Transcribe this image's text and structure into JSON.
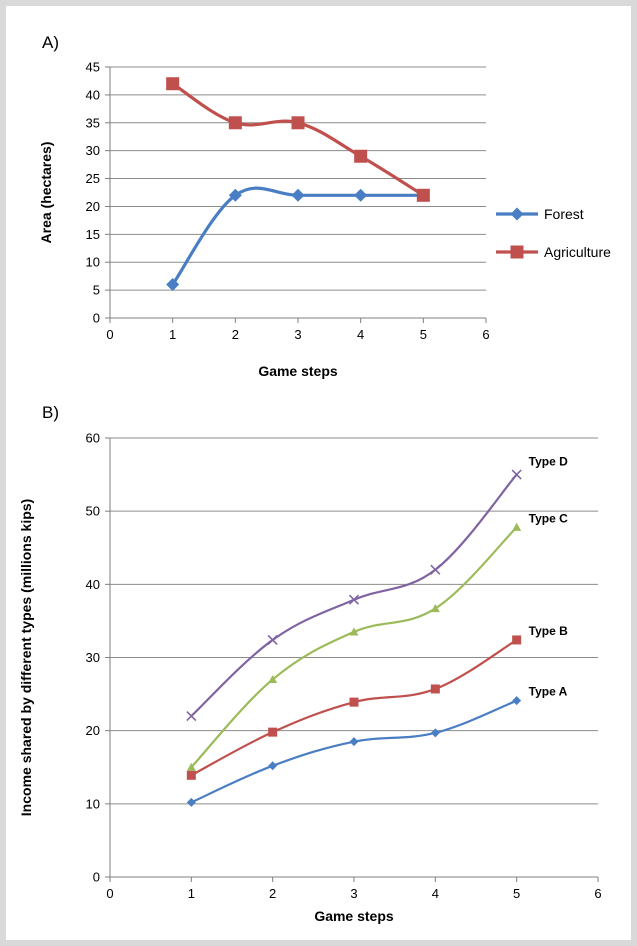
{
  "chart_data": [
    {
      "panel_label": "A)",
      "type": "line",
      "xlabel": "Game steps",
      "ylabel": "Area (hectares)",
      "xlim": [
        0,
        6
      ],
      "ylim": [
        0,
        45
      ],
      "xticks": [
        0,
        1,
        2,
        3,
        4,
        5,
        6
      ],
      "yticks": [
        0,
        5,
        10,
        15,
        20,
        25,
        30,
        35,
        40,
        45
      ],
      "grid": "horizontal",
      "legend": "right",
      "series": [
        {
          "name": "Forest",
          "marker": "diamond",
          "color": "#4a7ec4",
          "x": [
            1,
            2,
            3,
            4,
            5
          ],
          "y": [
            6,
            22,
            22,
            22,
            22
          ]
        },
        {
          "name": "Agriculture",
          "marker": "square",
          "color": "#c0504d",
          "x": [
            1,
            2,
            3,
            4,
            5
          ],
          "y": [
            42,
            35,
            35,
            29,
            22
          ]
        }
      ]
    },
    {
      "panel_label": "B)",
      "type": "line",
      "xlabel": "Game steps",
      "ylabel": "Income shared by different types (millions kips)",
      "xlim": [
        0,
        6
      ],
      "ylim": [
        0,
        60
      ],
      "xticks": [
        0,
        1,
        2,
        3,
        4,
        5,
        6
      ],
      "yticks": [
        0,
        10,
        20,
        30,
        40,
        50,
        60
      ],
      "grid": "horizontal",
      "legend": "inline labels at series ends",
      "series": [
        {
          "name": "Type A",
          "marker": "diamond",
          "color": "#4a7ec4",
          "x": [
            1,
            2,
            3,
            4,
            5
          ],
          "y": [
            10.2,
            15.2,
            18.5,
            19.7,
            24.1
          ]
        },
        {
          "name": "Type B",
          "marker": "square",
          "color": "#c0504d",
          "x": [
            1,
            2,
            3,
            4,
            5
          ],
          "y": [
            13.9,
            19.8,
            23.9,
            25.7,
            32.4
          ]
        },
        {
          "name": "Type C",
          "marker": "triangle",
          "color": "#9bbb59",
          "x": [
            1,
            2,
            3,
            4,
            5
          ],
          "y": [
            15,
            27,
            33.5,
            36.7,
            47.8
          ]
        },
        {
          "name": "Type D",
          "marker": "x",
          "color": "#8064a2",
          "x": [
            1,
            2,
            3,
            4,
            5
          ],
          "y": [
            22,
            32.4,
            37.9,
            42,
            55
          ]
        }
      ]
    }
  ]
}
